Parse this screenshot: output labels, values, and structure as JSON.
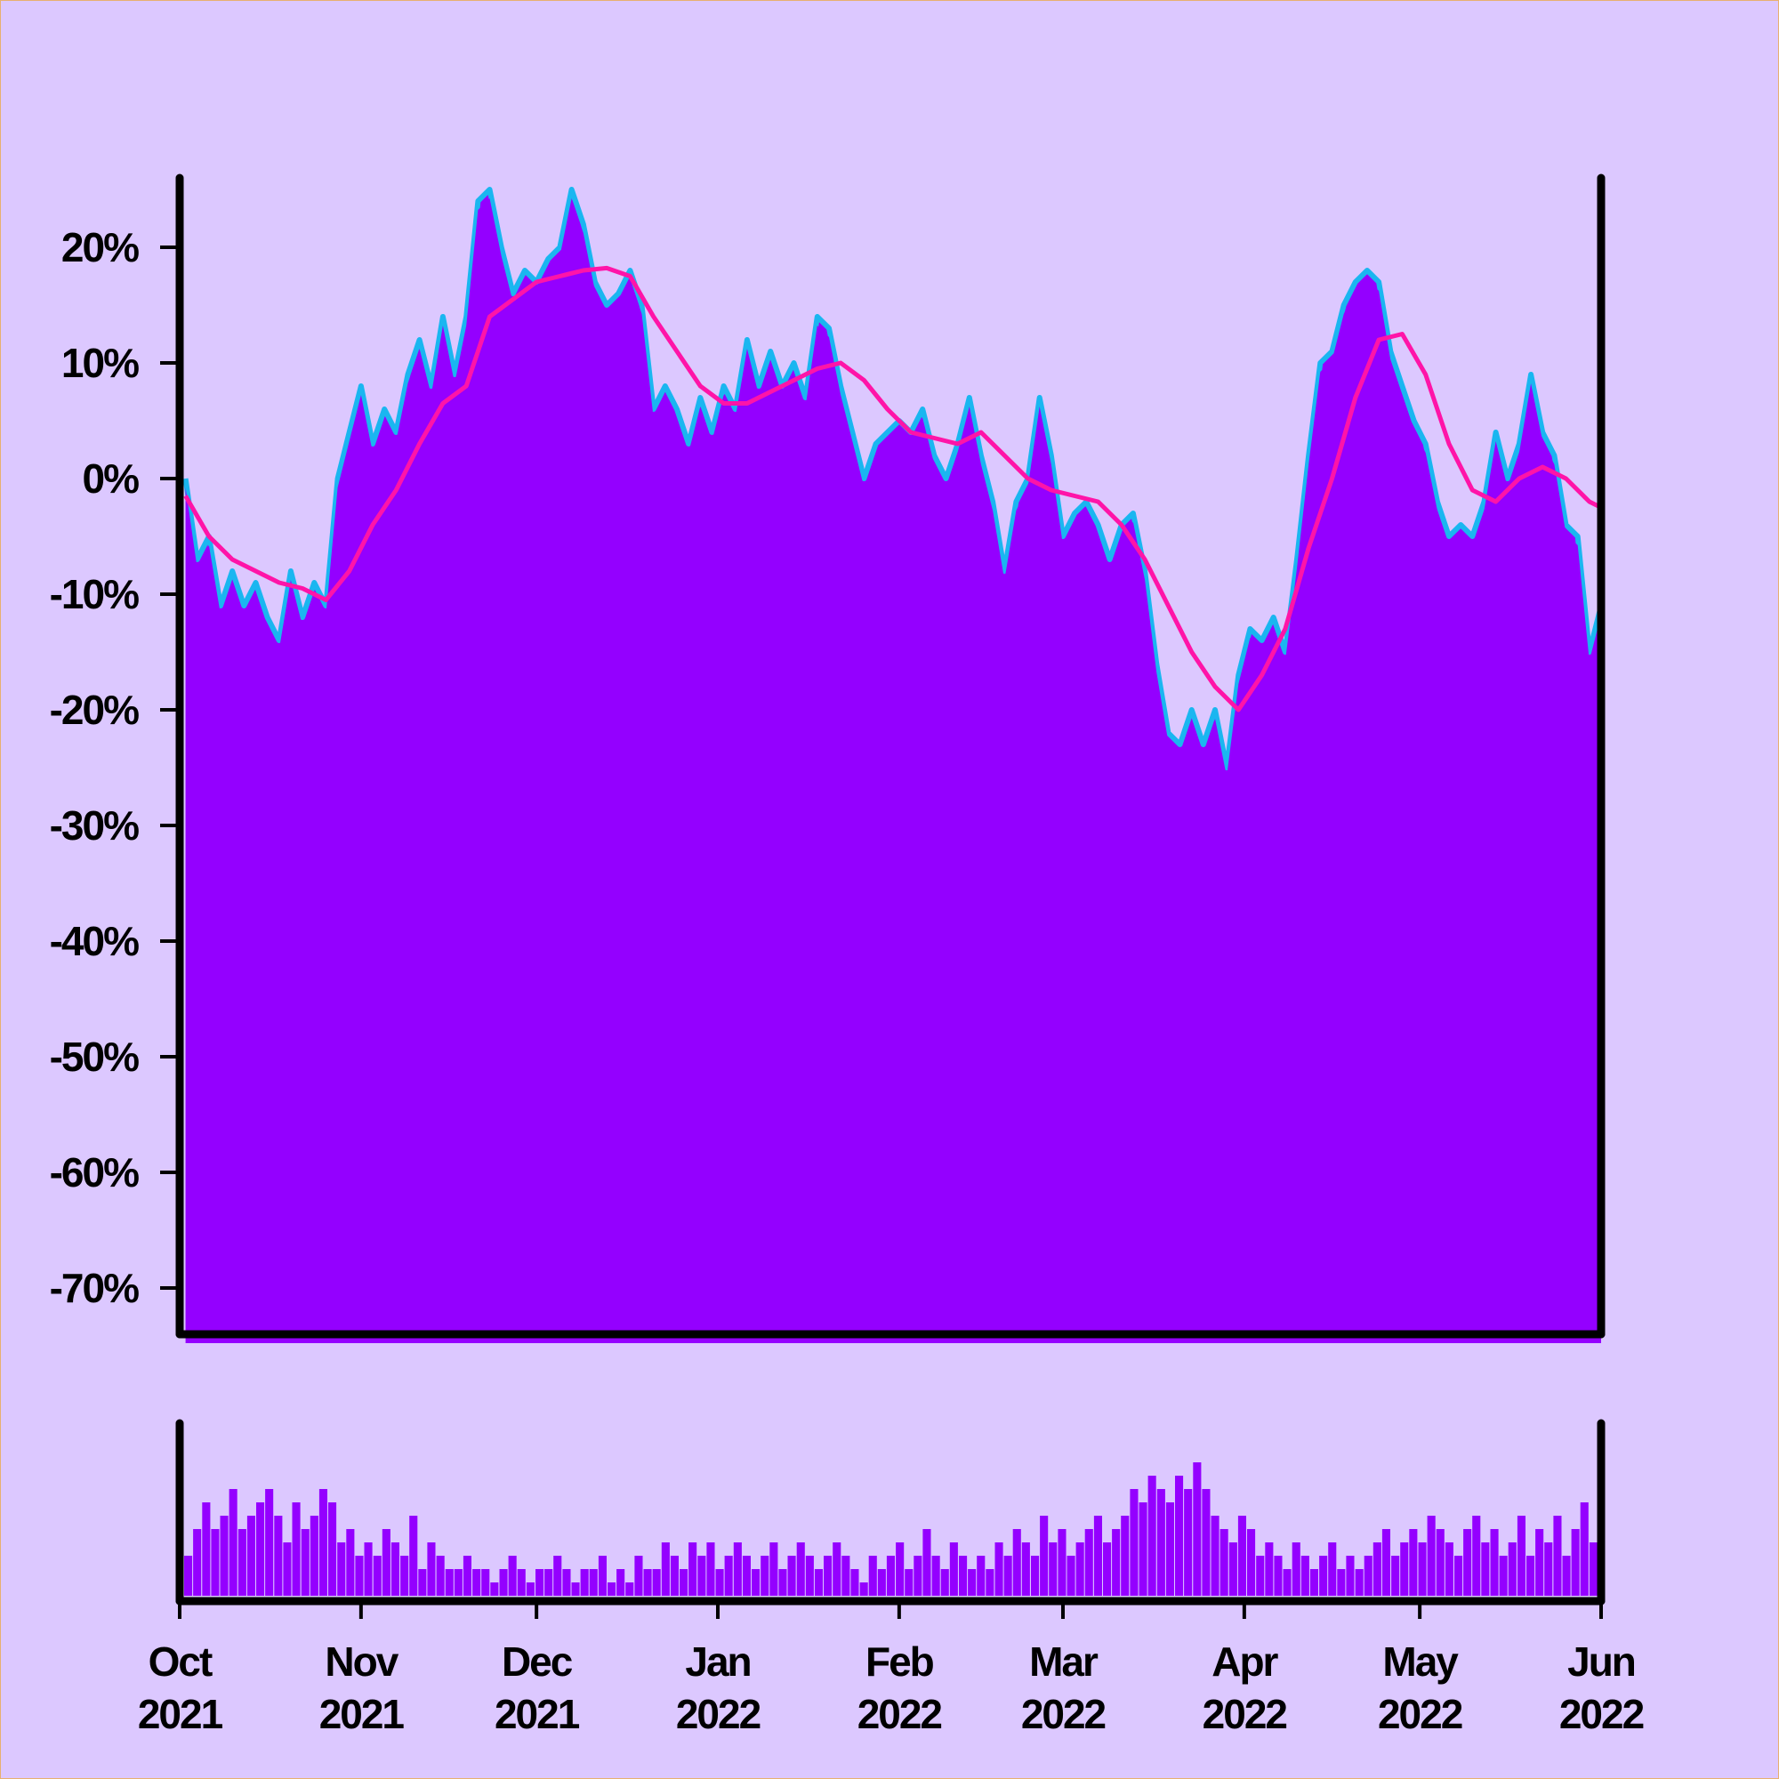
{
  "colors": {
    "background": "#dcc8ff",
    "area_fill": "#9400ff",
    "price_line": "#1ab6f0",
    "moving_average": "#ff14a8",
    "volume_bar": "#9400ff",
    "axis": "#000000"
  },
  "chart_data": [
    {
      "type": "area",
      "title": "",
      "xlabel": "",
      "ylabel": "",
      "ylim": [
        -74,
        26
      ],
      "y_ticks": [
        "20%",
        "10%",
        "0%",
        "-10%",
        "-20%",
        "-30%",
        "-40%",
        "-50%",
        "-60%",
        "-70%"
      ],
      "y_tick_values": [
        20,
        10,
        0,
        -10,
        -20,
        -30,
        -40,
        -50,
        -60,
        -70
      ],
      "x_range": [
        "2021-10-01",
        "2022-06-01"
      ],
      "x_ticks": [
        {
          "month": "Oct",
          "year": "2021",
          "date": "2021-10-01"
        },
        {
          "month": "Nov",
          "year": "2021",
          "date": "2021-11-01"
        },
        {
          "month": "Dec",
          "year": "2021",
          "date": "2021-12-01"
        },
        {
          "month": "Jan",
          "year": "2022",
          "date": "2022-01-01"
        },
        {
          "month": "Feb",
          "year": "2022",
          "date": "2022-02-01"
        },
        {
          "month": "Mar",
          "year": "2022",
          "date": "2022-03-01"
        },
        {
          "month": "Apr",
          "year": "2022",
          "date": "2022-04-01"
        },
        {
          "month": "May",
          "year": "2022",
          "date": "2022-05-01"
        },
        {
          "month": "Jun",
          "year": "2022",
          "date": "2022-06-01"
        }
      ],
      "series": [
        {
          "kind": "price",
          "points": [
            [
              "2021-10-02",
              0
            ],
            [
              "2021-10-04",
              -7
            ],
            [
              "2021-10-06",
              -5
            ],
            [
              "2021-10-08",
              -11
            ],
            [
              "2021-10-10",
              -8
            ],
            [
              "2021-10-12",
              -11
            ],
            [
              "2021-10-14",
              -9
            ],
            [
              "2021-10-16",
              -12
            ],
            [
              "2021-10-18",
              -14
            ],
            [
              "2021-10-20",
              -8
            ],
            [
              "2021-10-22",
              -12
            ],
            [
              "2021-10-24",
              -9
            ],
            [
              "2021-10-26",
              -11
            ],
            [
              "2021-10-28",
              0
            ],
            [
              "2021-10-30",
              4
            ],
            [
              "2021-11-01",
              8
            ],
            [
              "2021-11-03",
              3
            ],
            [
              "2021-11-05",
              6
            ],
            [
              "2021-11-07",
              4
            ],
            [
              "2021-11-09",
              9
            ],
            [
              "2021-11-11",
              12
            ],
            [
              "2021-11-13",
              8
            ],
            [
              "2021-11-15",
              14
            ],
            [
              "2021-11-17",
              9
            ],
            [
              "2021-11-19",
              14
            ],
            [
              "2021-11-21",
              24
            ],
            [
              "2021-11-23",
              25
            ],
            [
              "2021-11-25",
              20
            ],
            [
              "2021-11-27",
              16
            ],
            [
              "2021-11-29",
              18
            ],
            [
              "2021-12-01",
              17
            ],
            [
              "2021-12-03",
              19
            ],
            [
              "2021-12-05",
              20
            ],
            [
              "2021-12-07",
              25
            ],
            [
              "2021-12-09",
              22
            ],
            [
              "2021-12-11",
              17
            ],
            [
              "2021-12-13",
              15
            ],
            [
              "2021-12-15",
              16
            ],
            [
              "2021-12-17",
              18
            ],
            [
              "2021-12-19",
              15
            ],
            [
              "2021-12-21",
              6
            ],
            [
              "2021-12-23",
              8
            ],
            [
              "2021-12-25",
              6
            ],
            [
              "2021-12-27",
              3
            ],
            [
              "2021-12-29",
              7
            ],
            [
              "2021-12-31",
              4
            ],
            [
              "2022-01-02",
              8
            ],
            [
              "2022-01-04",
              6
            ],
            [
              "2022-01-06",
              12
            ],
            [
              "2022-01-08",
              8
            ],
            [
              "2022-01-10",
              11
            ],
            [
              "2022-01-12",
              8
            ],
            [
              "2022-01-14",
              10
            ],
            [
              "2022-01-16",
              7
            ],
            [
              "2022-01-18",
              14
            ],
            [
              "2022-01-20",
              13
            ],
            [
              "2022-01-22",
              8
            ],
            [
              "2022-01-24",
              4
            ],
            [
              "2022-01-26",
              0
            ],
            [
              "2022-01-28",
              3
            ],
            [
              "2022-01-30",
              4
            ],
            [
              "2022-02-01",
              5
            ],
            [
              "2022-02-03",
              4
            ],
            [
              "2022-02-05",
              6
            ],
            [
              "2022-02-07",
              2
            ],
            [
              "2022-02-09",
              0
            ],
            [
              "2022-02-11",
              3
            ],
            [
              "2022-02-13",
              7
            ],
            [
              "2022-02-15",
              2
            ],
            [
              "2022-02-17",
              -2
            ],
            [
              "2022-02-19",
              -8
            ],
            [
              "2022-02-21",
              -2
            ],
            [
              "2022-02-23",
              0
            ],
            [
              "2022-02-25",
              7
            ],
            [
              "2022-02-27",
              2
            ],
            [
              "2022-03-01",
              -5
            ],
            [
              "2022-03-03",
              -3
            ],
            [
              "2022-03-05",
              -2
            ],
            [
              "2022-03-07",
              -4
            ],
            [
              "2022-03-09",
              -7
            ],
            [
              "2022-03-11",
              -4
            ],
            [
              "2022-03-13",
              -3
            ],
            [
              "2022-03-15",
              -8
            ],
            [
              "2022-03-17",
              -16
            ],
            [
              "2022-03-19",
              -22
            ],
            [
              "2022-03-21",
              -23
            ],
            [
              "2022-03-23",
              -20
            ],
            [
              "2022-03-25",
              -23
            ],
            [
              "2022-03-27",
              -20
            ],
            [
              "2022-03-29",
              -25
            ],
            [
              "2022-03-31",
              -17
            ],
            [
              "2022-04-02",
              -13
            ],
            [
              "2022-04-04",
              -14
            ],
            [
              "2022-04-06",
              -12
            ],
            [
              "2022-04-08",
              -15
            ],
            [
              "2022-04-10",
              -7
            ],
            [
              "2022-04-12",
              2
            ],
            [
              "2022-04-14",
              10
            ],
            [
              "2022-04-16",
              11
            ],
            [
              "2022-04-18",
              15
            ],
            [
              "2022-04-20",
              17
            ],
            [
              "2022-04-22",
              18
            ],
            [
              "2022-04-24",
              17
            ],
            [
              "2022-04-26",
              11
            ],
            [
              "2022-04-28",
              8
            ],
            [
              "2022-04-30",
              5
            ],
            [
              "2022-05-02",
              3
            ],
            [
              "2022-05-04",
              -2
            ],
            [
              "2022-05-06",
              -5
            ],
            [
              "2022-05-08",
              -4
            ],
            [
              "2022-05-10",
              -5
            ],
            [
              "2022-05-12",
              -2
            ],
            [
              "2022-05-14",
              4
            ],
            [
              "2022-05-16",
              0
            ],
            [
              "2022-05-18",
              3
            ],
            [
              "2022-05-20",
              9
            ],
            [
              "2022-05-22",
              4
            ],
            [
              "2022-05-24",
              2
            ],
            [
              "2022-05-26",
              -4
            ],
            [
              "2022-05-28",
              -5
            ],
            [
              "2022-05-30",
              -15
            ],
            [
              "2022-06-01",
              -11
            ]
          ]
        },
        {
          "kind": "moving_average",
          "points": [
            [
              "2021-10-02",
              -1.5
            ],
            [
              "2021-10-06",
              -5
            ],
            [
              "2021-10-10",
              -7
            ],
            [
              "2021-10-14",
              -8
            ],
            [
              "2021-10-18",
              -9
            ],
            [
              "2021-10-22",
              -9.5
            ],
            [
              "2021-10-26",
              -10.5
            ],
            [
              "2021-10-30",
              -8
            ],
            [
              "2021-11-03",
              -4
            ],
            [
              "2021-11-07",
              -1
            ],
            [
              "2021-11-11",
              3
            ],
            [
              "2021-11-15",
              6.5
            ],
            [
              "2021-11-19",
              8
            ],
            [
              "2021-11-23",
              14
            ],
            [
              "2021-11-27",
              15.5
            ],
            [
              "2021-12-01",
              17
            ],
            [
              "2021-12-05",
              17.5
            ],
            [
              "2021-12-09",
              18
            ],
            [
              "2021-12-13",
              18.2
            ],
            [
              "2021-12-17",
              17.5
            ],
            [
              "2021-12-21",
              14
            ],
            [
              "2021-12-25",
              11
            ],
            [
              "2021-12-29",
              8
            ],
            [
              "2022-01-02",
              6.5
            ],
            [
              "2022-01-06",
              6.5
            ],
            [
              "2022-01-10",
              7.5
            ],
            [
              "2022-01-14",
              8.5
            ],
            [
              "2022-01-18",
              9.5
            ],
            [
              "2022-01-22",
              10
            ],
            [
              "2022-01-26",
              8.5
            ],
            [
              "2022-01-30",
              6
            ],
            [
              "2022-02-03",
              4
            ],
            [
              "2022-02-07",
              3.5
            ],
            [
              "2022-02-11",
              3
            ],
            [
              "2022-02-15",
              4
            ],
            [
              "2022-02-19",
              2
            ],
            [
              "2022-02-23",
              0
            ],
            [
              "2022-02-27",
              -1
            ],
            [
              "2022-03-03",
              -1.5
            ],
            [
              "2022-03-07",
              -2
            ],
            [
              "2022-03-11",
              -4
            ],
            [
              "2022-03-15",
              -7
            ],
            [
              "2022-03-19",
              -11
            ],
            [
              "2022-03-23",
              -15
            ],
            [
              "2022-03-27",
              -18
            ],
            [
              "2022-03-31",
              -20
            ],
            [
              "2022-04-04",
              -17
            ],
            [
              "2022-04-08",
              -13
            ],
            [
              "2022-04-12",
              -6
            ],
            [
              "2022-04-16",
              0
            ],
            [
              "2022-04-20",
              7
            ],
            [
              "2022-04-24",
              12
            ],
            [
              "2022-04-28",
              12.5
            ],
            [
              "2022-05-02",
              9
            ],
            [
              "2022-05-06",
              3
            ],
            [
              "2022-05-10",
              -1
            ],
            [
              "2022-05-14",
              -2
            ],
            [
              "2022-05-18",
              0
            ],
            [
              "2022-05-22",
              1
            ],
            [
              "2022-05-26",
              0
            ],
            [
              "2022-05-30",
              -2
            ],
            [
              "2022-06-01",
              -2.5
            ]
          ]
        }
      ]
    },
    {
      "type": "bar",
      "title": "",
      "xlabel": "",
      "ylabel": "",
      "x_range": [
        "2021-10-01",
        "2022-06-01"
      ],
      "ylim": [
        0,
        10
      ],
      "values": [
        3,
        5,
        7,
        5,
        6,
        8,
        5,
        6,
        7,
        8,
        6,
        4,
        7,
        5,
        6,
        8,
        7,
        4,
        5,
        3,
        4,
        3,
        5,
        4,
        3,
        6,
        2,
        4,
        3,
        2,
        2,
        3,
        2,
        2,
        1,
        2,
        3,
        2,
        1,
        2,
        2,
        3,
        2,
        1,
        2,
        2,
        3,
        1,
        2,
        1,
        3,
        2,
        2,
        4,
        3,
        2,
        4,
        3,
        4,
        2,
        3,
        4,
        3,
        2,
        3,
        4,
        2,
        3,
        4,
        3,
        2,
        3,
        4,
        3,
        2,
        1,
        3,
        2,
        3,
        4,
        2,
        3,
        5,
        3,
        2,
        4,
        3,
        2,
        3,
        2,
        4,
        3,
        5,
        4,
        3,
        6,
        4,
        5,
        3,
        4,
        5,
        6,
        4,
        5,
        6,
        8,
        7,
        9,
        8,
        7,
        9,
        8,
        10,
        8,
        6,
        5,
        4,
        6,
        5,
        3,
        4,
        3,
        2,
        4,
        3,
        2,
        3,
        4,
        2,
        3,
        2,
        3,
        4,
        5,
        3,
        4,
        5,
        4,
        6,
        5,
        4,
        3,
        5,
        6,
        4,
        5,
        3,
        4,
        6,
        3,
        5,
        4,
        6,
        3,
        5,
        7,
        4
      ]
    }
  ]
}
